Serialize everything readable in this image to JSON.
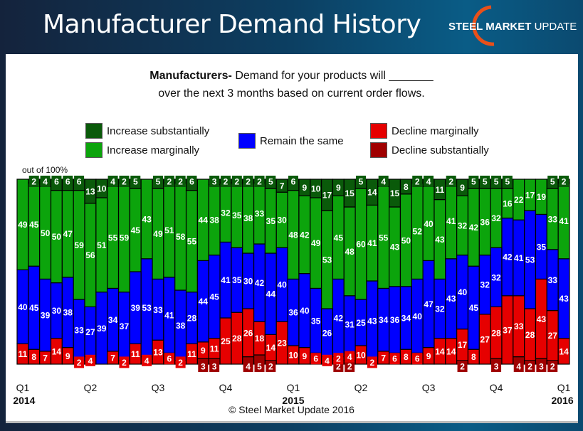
{
  "header": {
    "title": "Manufacturer Demand History",
    "logo_bold": "STEEL MARKET",
    "logo_light": "UPDATE"
  },
  "question": {
    "bold": "Manufacturers-",
    "line1": " Demand for your products will _______",
    "line2": "over the next 3 months based on current order flows."
  },
  "footer": {
    "copyright": "© Steel Market Update 2016"
  },
  "chart_data": {
    "type": "bar",
    "stacked": true,
    "ylabel": "out of 100%",
    "ylim": [
      0,
      100
    ],
    "legend": [
      {
        "name": "Increase substantially",
        "color": "#0a5a0a"
      },
      {
        "name": "Increase marginally",
        "color": "#0ca40c"
      },
      {
        "name": "Remain the same",
        "color": "#0000ff"
      },
      {
        "name": "Decline marginally",
        "color": "#e60000"
      },
      {
        "name": "Decline substantially",
        "color": "#a00000"
      }
    ],
    "x_ticks": [
      {
        "index": 0,
        "label": "Q1",
        "year": "2014"
      },
      {
        "index": 6,
        "label": "Q2"
      },
      {
        "index": 12,
        "label": "Q3"
      },
      {
        "index": 18,
        "label": "Q4"
      },
      {
        "index": 24,
        "label": "Q1",
        "year": "2015"
      },
      {
        "index": 30,
        "label": "Q2"
      },
      {
        "index": 36,
        "label": "Q3"
      },
      {
        "index": 42,
        "label": "Q4"
      },
      {
        "index": 48,
        "label": "Q1",
        "year": "2016"
      }
    ],
    "series": [
      {
        "name": "Increase substantially",
        "values": [
          0,
          2,
          4,
          6,
          6,
          6,
          13,
          10,
          4,
          2,
          5,
          0,
          5,
          2,
          2,
          6,
          0,
          3,
          2,
          2,
          2,
          2,
          5,
          7,
          6,
          9,
          10,
          17,
          9,
          15,
          5,
          14,
          4,
          15,
          8,
          2,
          4,
          11,
          2,
          9,
          5,
          5,
          5,
          5,
          0,
          0,
          0,
          5,
          2
        ]
      },
      {
        "name": "Increase marginally",
        "values": [
          49,
          45,
          50,
          50,
          47,
          59,
          56,
          51,
          55,
          59,
          45,
          43,
          49,
          51,
          58,
          55,
          44,
          38,
          32,
          35,
          38,
          33,
          35,
          30,
          48,
          42,
          49,
          53,
          45,
          48,
          60,
          41,
          55,
          43,
          50,
          52,
          40,
          43,
          41,
          32,
          42,
          36,
          32,
          16,
          22,
          17,
          19,
          33,
          41
        ]
      },
      {
        "name": "Remain the same",
        "values": [
          40,
          45,
          39,
          30,
          38,
          33,
          27,
          39,
          34,
          37,
          39,
          53,
          33,
          41,
          38,
          28,
          44,
          45,
          41,
          35,
          30,
          42,
          44,
          40,
          36,
          40,
          35,
          26,
          42,
          31,
          25,
          43,
          34,
          36,
          34,
          40,
          47,
          32,
          43,
          40,
          45,
          32,
          32,
          42,
          41,
          53,
          35,
          33,
          43
        ]
      },
      {
        "name": "Decline marginally",
        "values": [
          11,
          8,
          7,
          14,
          9,
          2,
          4,
          0,
          7,
          2,
          11,
          4,
          13,
          6,
          2,
          11,
          9,
          11,
          25,
          28,
          26,
          18,
          14,
          23,
          10,
          9,
          6,
          4,
          2,
          4,
          10,
          2,
          7,
          6,
          8,
          6,
          9,
          14,
          14,
          17,
          8,
          27,
          28,
          37,
          33,
          28,
          43,
          27,
          14
        ]
      },
      {
        "name": "Decline substantially",
        "values": [
          0,
          0,
          0,
          0,
          0,
          0,
          0,
          0,
          0,
          0,
          0,
          0,
          0,
          0,
          0,
          0,
          3,
          3,
          0,
          0,
          4,
          5,
          2,
          0,
          0,
          0,
          0,
          0,
          2,
          2,
          0,
          0,
          0,
          0,
          0,
          0,
          0,
          0,
          0,
          2,
          0,
          0,
          3,
          0,
          4,
          2,
          3,
          2,
          0
        ]
      }
    ]
  }
}
